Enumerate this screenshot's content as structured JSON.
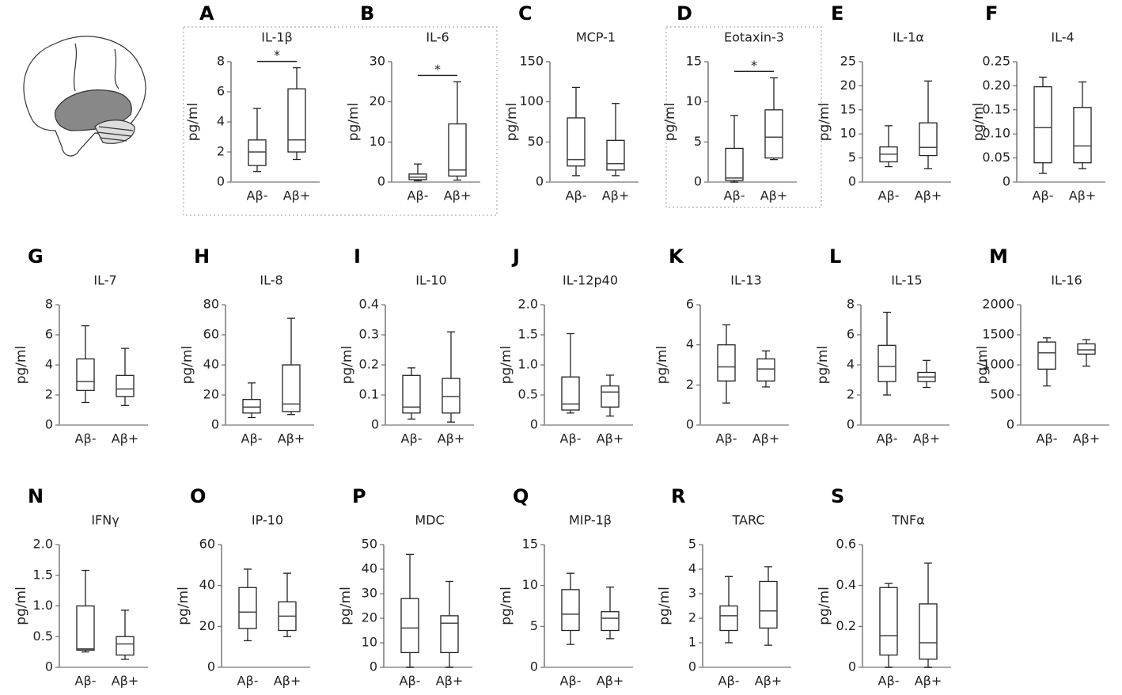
{
  "chart_data": [
    {
      "type": "box",
      "panel": "A",
      "title": "IL-1β",
      "ylabel": "pg/ml",
      "categories": [
        "Aβ-",
        "Aβ+"
      ],
      "boxes": [
        {
          "min": 0.7,
          "q1": 1.1,
          "median": 2.0,
          "q3": 2.8,
          "max": 4.9
        },
        {
          "min": 1.5,
          "q1": 2.0,
          "median": 2.8,
          "q3": 6.2,
          "max": 7.6
        }
      ],
      "ylim": [
        0,
        8
      ],
      "yticks": [
        0,
        2,
        4,
        6,
        8
      ],
      "significance": "*"
    },
    {
      "type": "box",
      "panel": "B",
      "title": "IL-6",
      "ylabel": "pg/ml",
      "categories": [
        "Aβ-",
        "Aβ+"
      ],
      "boxes": [
        {
          "min": 0.3,
          "q1": 0.6,
          "median": 1.2,
          "q3": 2.0,
          "max": 4.5
        },
        {
          "min": 0.5,
          "q1": 1.5,
          "median": 3.0,
          "q3": 14.5,
          "max": 25
        }
      ],
      "ylim": [
        0,
        30
      ],
      "yticks": [
        0,
        10,
        20,
        30
      ],
      "significance": "*"
    },
    {
      "type": "box",
      "panel": "C",
      "title": "MCP-1",
      "ylabel": "pg/ml",
      "categories": [
        "Aβ-",
        "Aβ+"
      ],
      "boxes": [
        {
          "min": 8,
          "q1": 20,
          "median": 28,
          "q3": 80,
          "max": 118
        },
        {
          "min": 8,
          "q1": 15,
          "median": 23,
          "q3": 52,
          "max": 98
        }
      ],
      "ylim": [
        0,
        150
      ],
      "yticks": [
        0,
        50,
        100,
        150
      ]
    },
    {
      "type": "box",
      "panel": "D",
      "title": "Eotaxin-3",
      "ylabel": "pg/ml",
      "categories": [
        "Aβ-",
        "Aβ+"
      ],
      "boxes": [
        {
          "min": 0,
          "q1": 0.2,
          "median": 0.5,
          "q3": 4.2,
          "max": 8.3
        },
        {
          "min": 2.8,
          "q1": 3.0,
          "median": 5.6,
          "q3": 9.0,
          "max": 13
        }
      ],
      "ylim": [
        0,
        15
      ],
      "yticks": [
        0,
        5,
        10,
        15
      ],
      "significance": "*"
    },
    {
      "type": "box",
      "panel": "E",
      "title": "IL-1α",
      "ylabel": "pg/ml",
      "categories": [
        "Aβ-",
        "Aβ+"
      ],
      "boxes": [
        {
          "min": 3.2,
          "q1": 4.2,
          "median": 5.8,
          "q3": 7.3,
          "max": 11.7
        },
        {
          "min": 2.8,
          "q1": 5.5,
          "median": 7.2,
          "q3": 12.3,
          "max": 21
        }
      ],
      "ylim": [
        0,
        25
      ],
      "yticks": [
        0,
        5,
        10,
        15,
        20,
        25
      ]
    },
    {
      "type": "box",
      "panel": "F",
      "title": "IL-4",
      "ylabel": "pg/ml",
      "categories": [
        "Aβ-",
        "Aβ+"
      ],
      "boxes": [
        {
          "min": 0.018,
          "q1": 0.04,
          "median": 0.113,
          "q3": 0.198,
          "max": 0.218
        },
        {
          "min": 0.028,
          "q1": 0.04,
          "median": 0.075,
          "q3": 0.155,
          "max": 0.208
        }
      ],
      "ylim": [
        0,
        0.25
      ],
      "yticks": [
        0,
        0.05,
        {
          "value": 0.1,
          "label": "0.10"
        },
        0.15,
        {
          "value": 0.2,
          "label": "0.20"
        },
        0.25
      ]
    },
    {
      "type": "box",
      "panel": "G",
      "title": "IL-7",
      "ylabel": "pg/ml",
      "categories": [
        "Aβ-",
        "Aβ+"
      ],
      "boxes": [
        {
          "min": 1.5,
          "q1": 2.3,
          "median": 2.9,
          "q3": 4.4,
          "max": 6.6
        },
        {
          "min": 1.3,
          "q1": 1.9,
          "median": 2.4,
          "q3": 3.3,
          "max": 5.1
        }
      ],
      "ylim": [
        0,
        8
      ],
      "yticks": [
        0,
        2,
        4,
        6,
        8
      ]
    },
    {
      "type": "box",
      "panel": "H",
      "title": "IL-8",
      "ylabel": "pg/ml",
      "categories": [
        "Aβ-",
        "Aβ+"
      ],
      "boxes": [
        {
          "min": 5,
          "q1": 8,
          "median": 12,
          "q3": 17,
          "max": 28
        },
        {
          "min": 7,
          "q1": 9,
          "median": 14,
          "q3": 40,
          "max": 71
        }
      ],
      "ylim": [
        0,
        80
      ],
      "yticks": [
        0,
        20,
        40,
        60,
        80
      ]
    },
    {
      "type": "box",
      "panel": "I",
      "title": "IL-10",
      "ylabel": "pg/ml",
      "categories": [
        "Aβ-",
        "Aβ+"
      ],
      "boxes": [
        {
          "min": 0.02,
          "q1": 0.04,
          "median": 0.06,
          "q3": 0.165,
          "max": 0.19
        },
        {
          "min": 0.01,
          "q1": 0.04,
          "median": 0.095,
          "q3": 0.155,
          "max": 0.31
        }
      ],
      "ylim": [
        0,
        0.4
      ],
      "yticks": [
        0,
        0.1,
        0.2,
        0.3,
        0.4
      ]
    },
    {
      "type": "box",
      "panel": "J",
      "title": "IL-12p40",
      "ylabel": "pg/ml",
      "categories": [
        "Aβ-",
        "Aβ+"
      ],
      "boxes": [
        {
          "min": 0.2,
          "q1": 0.25,
          "median": 0.35,
          "q3": 0.8,
          "max": 1.52
        },
        {
          "min": 0.15,
          "q1": 0.3,
          "median": 0.55,
          "q3": 0.65,
          "max": 0.83
        }
      ],
      "ylim": [
        0,
        2
      ],
      "yticks": [
        0,
        0.5,
        {
          "value": 1,
          "label": "1.0"
        },
        1.5,
        {
          "value": 2,
          "label": "2.0"
        }
      ]
    },
    {
      "type": "box",
      "panel": "K",
      "title": "IL-13",
      "ylabel": "pg/ml",
      "categories": [
        "Aβ-",
        "Aβ+"
      ],
      "boxes": [
        {
          "min": 1.1,
          "q1": 2.2,
          "median": 2.9,
          "q3": 4.0,
          "max": 5.0
        },
        {
          "min": 1.9,
          "q1": 2.2,
          "median": 2.8,
          "q3": 3.3,
          "max": 3.7
        }
      ],
      "ylim": [
        0,
        6
      ],
      "yticks": [
        0,
        2,
        4,
        6
      ]
    },
    {
      "type": "box",
      "panel": "L",
      "title": "IL-15",
      "ylabel": "pg/ml",
      "categories": [
        "Aβ-",
        "Aβ+"
      ],
      "boxes": [
        {
          "min": 2.0,
          "q1": 2.9,
          "median": 3.9,
          "q3": 5.3,
          "max": 7.5
        },
        {
          "min": 2.5,
          "q1": 2.9,
          "median": 3.2,
          "q3": 3.5,
          "max": 4.3
        }
      ],
      "ylim": [
        0,
        8
      ],
      "yticks": [
        0,
        2,
        4,
        6,
        8
      ]
    },
    {
      "type": "box",
      "panel": "M",
      "title": "IL-16",
      "ylabel": "pg/ml",
      "categories": [
        "Aβ-",
        "Aβ+"
      ],
      "boxes": [
        {
          "min": 650,
          "q1": 930,
          "median": 1200,
          "q3": 1380,
          "max": 1450
        },
        {
          "min": 980,
          "q1": 1180,
          "median": 1250,
          "q3": 1350,
          "max": 1420
        }
      ],
      "ylim": [
        0,
        2000
      ],
      "yticks": [
        0,
        500,
        1000,
        1500,
        2000
      ]
    },
    {
      "type": "box",
      "panel": "N",
      "title": "IFNγ",
      "ylabel": "pg/ml",
      "categories": [
        "Aβ-",
        "Aβ+"
      ],
      "boxes": [
        {
          "min": 0.25,
          "q1": 0.28,
          "median": 0.3,
          "q3": 1.0,
          "max": 1.58
        },
        {
          "min": 0.13,
          "q1": 0.2,
          "median": 0.38,
          "q3": 0.5,
          "max": 0.93
        }
      ],
      "ylim": [
        0,
        2
      ],
      "yticks": [
        0,
        0.5,
        {
          "value": 1,
          "label": "1.0"
        },
        1.5,
        {
          "value": 2,
          "label": "2.0"
        }
      ]
    },
    {
      "type": "box",
      "panel": "O",
      "title": "IP-10",
      "ylabel": "pg/ml",
      "categories": [
        "Aβ-",
        "Aβ+"
      ],
      "boxes": [
        {
          "min": 13,
          "q1": 19,
          "median": 27,
          "q3": 39,
          "max": 48
        },
        {
          "min": 15,
          "q1": 18,
          "median": 25,
          "q3": 32,
          "max": 46
        }
      ],
      "ylim": [
        0,
        60
      ],
      "yticks": [
        0,
        20,
        40,
        60
      ]
    },
    {
      "type": "box",
      "panel": "P",
      "title": "MDC",
      "ylabel": "pg/ml",
      "categories": [
        "Aβ-",
        "Aβ+"
      ],
      "boxes": [
        {
          "min": 0,
          "q1": 6,
          "median": 16,
          "q3": 28,
          "max": 46
        },
        {
          "min": 0,
          "q1": 6,
          "median": 18,
          "q3": 21,
          "max": 35
        }
      ],
      "ylim": [
        0,
        50
      ],
      "yticks": [
        0,
        10,
        20,
        30,
        40,
        50
      ]
    },
    {
      "type": "box",
      "panel": "Q",
      "title": "MIP-1β",
      "ylabel": "pg/ml",
      "categories": [
        "Aβ-",
        "Aβ+"
      ],
      "boxes": [
        {
          "min": 2.8,
          "q1": 4.5,
          "median": 6.5,
          "q3": 9.5,
          "max": 11.5
        },
        {
          "min": 3.5,
          "q1": 4.5,
          "median": 6.0,
          "q3": 6.8,
          "max": 9.8
        }
      ],
      "ylim": [
        0,
        15
      ],
      "yticks": [
        0,
        5,
        10,
        15
      ]
    },
    {
      "type": "box",
      "panel": "R",
      "title": "TARC",
      "ylabel": "pg/ml",
      "categories": [
        "Aβ-",
        "Aβ+"
      ],
      "boxes": [
        {
          "min": 1.0,
          "q1": 1.5,
          "median": 2.1,
          "q3": 2.5,
          "max": 3.7
        },
        {
          "min": 0.9,
          "q1": 1.6,
          "median": 2.3,
          "q3": 3.5,
          "max": 4.1
        }
      ],
      "ylim": [
        0,
        5
      ],
      "yticks": [
        0,
        1,
        2,
        3,
        4,
        5
      ]
    },
    {
      "type": "box",
      "panel": "S",
      "title": "TNFα",
      "ylabel": "pg/ml",
      "categories": [
        "Aβ-",
        "Aβ+"
      ],
      "boxes": [
        {
          "min": 0,
          "q1": 0.06,
          "median": 0.155,
          "q3": 0.39,
          "max": 0.41
        },
        {
          "min": 0,
          "q1": 0.04,
          "median": 0.12,
          "q3": 0.31,
          "max": 0.51
        }
      ],
      "ylim": [
        0,
        0.6
      ],
      "yticks": [
        0,
        0.2,
        0.4,
        0.6
      ]
    }
  ]
}
